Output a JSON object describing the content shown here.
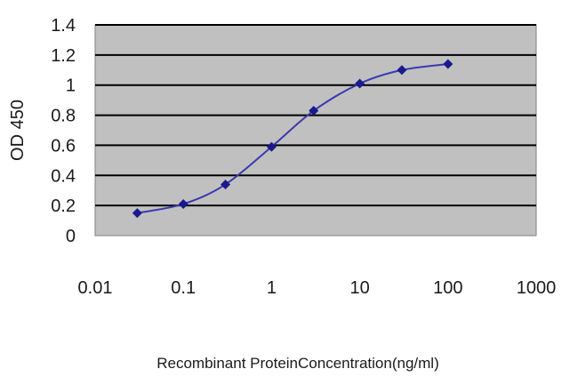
{
  "chart_data": {
    "type": "line",
    "title": "",
    "xlabel": "Recombinant ProteinConcentration(ng/ml)",
    "ylabel": "OD 450",
    "x_scale": "log",
    "xlim": [
      0.01,
      1000
    ],
    "ylim": [
      0,
      1.4
    ],
    "x_ticks": [
      "0.01",
      "0.1",
      "1",
      "10",
      "100",
      "1000"
    ],
    "y_ticks": [
      "0",
      "0.2",
      "0.4",
      "0.6",
      "0.8",
      "1",
      "1.2",
      "1.4"
    ],
    "grid": "horizontal",
    "legend": "none",
    "colors": {
      "line": "#3a3ab0",
      "marker": "#1a1a8c",
      "plot_bg": "#c0c0c0",
      "grid": "#000000"
    },
    "series": [
      {
        "x": [
          0.03,
          0.1,
          0.3,
          1,
          3,
          10,
          30,
          100
        ],
        "values": [
          0.15,
          0.21,
          0.34,
          0.59,
          0.83,
          1.01,
          1.1,
          1.14
        ]
      }
    ]
  }
}
